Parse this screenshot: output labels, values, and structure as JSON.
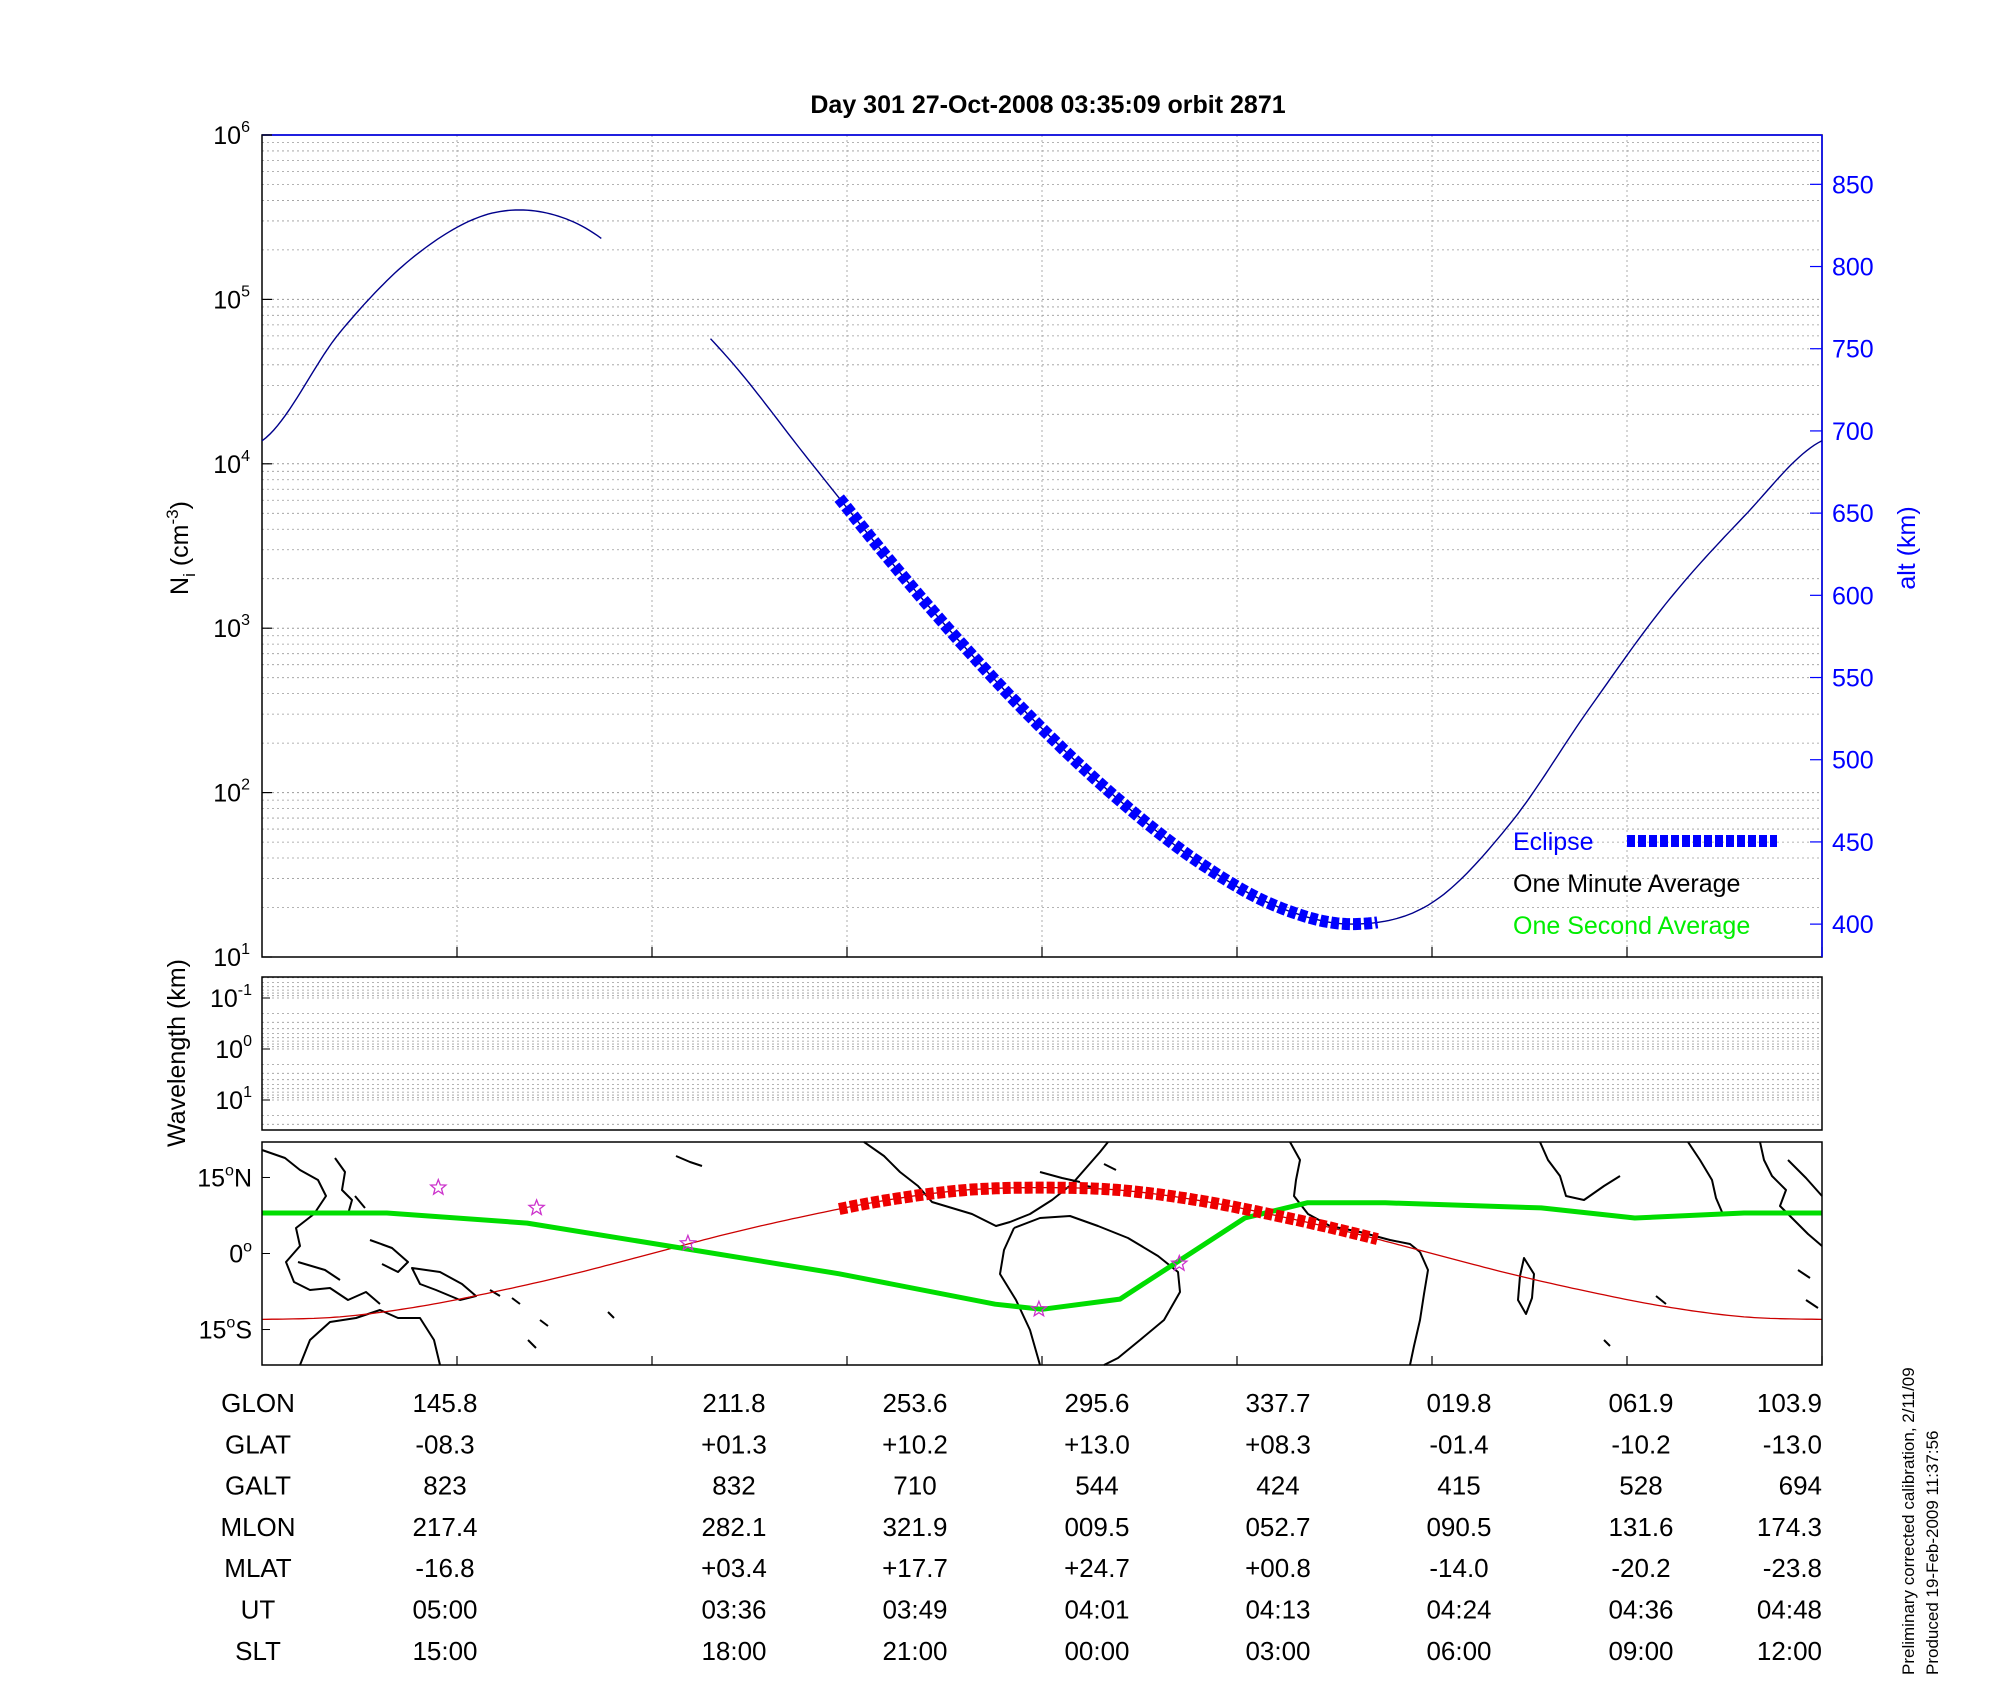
{
  "chart_data": [
    {
      "type": "line",
      "title": "Day 301  27-Oct-2008 03:35:09   orbit 2871",
      "ylabel": "N",
      "ylabel_sub": "i",
      "ylabel_unit_open": " (cm",
      "ylabel_unit_exp": "-3",
      "ylabel_unit_close": ")",
      "y_scale": "log",
      "ylim": [
        10,
        1000000
      ],
      "y_ticks": [
        {
          "base": "10",
          "exp": "1",
          "value": 10
        },
        {
          "base": "10",
          "exp": "2",
          "value": 100
        },
        {
          "base": "10",
          "exp": "3",
          "value": 1000
        },
        {
          "base": "10",
          "exp": "4",
          "value": 10000
        },
        {
          "base": "10",
          "exp": "5",
          "value": 100000
        },
        {
          "base": "10",
          "exp": "6",
          "value": 1000000
        }
      ],
      "y2label": "alt (km)",
      "y2lim": [
        380,
        880
      ],
      "y2_ticks": [
        "400",
        "450",
        "500",
        "550",
        "600",
        "650",
        "700",
        "750",
        "800",
        "850"
      ],
      "x_ticks_ut": [
        "05:00",
        "03:36",
        "03:49",
        "04:01",
        "04:13",
        "04:24",
        "04:36",
        "04:48"
      ],
      "grid": true,
      "legend_position": "bottom-right",
      "legend": [
        {
          "label": "Eclipse",
          "color": "#0000ff",
          "style": "thick-dashed"
        },
        {
          "label": "One Minute Average",
          "color": "#000000",
          "style": "none"
        },
        {
          "label": "One Second Average",
          "color": "#00ee00",
          "style": "none"
        }
      ],
      "series": [
        {
          "name": "alt (km)",
          "axis": "right",
          "color": "#00008b",
          "t": [
            0,
            0.05,
            0.1,
            0.15,
            0.2,
            0.25,
            0.3,
            0.35,
            0.4,
            0.45,
            0.5,
            0.55,
            0.6,
            0.65,
            0.7,
            0.75,
            0.8,
            0.85,
            0.9,
            0.95,
            1.0
          ],
          "values": [
            694,
            760,
            808,
            833,
            827,
            791,
            743,
            683,
            624,
            569,
            519,
            475,
            438,
            411,
            400,
            413,
            461,
            530,
            595,
            648,
            694
          ]
        }
      ],
      "eclipse_t_range": [
        0.37,
        0.715
      ],
      "gaps": [
        [
          0.218,
          0.286
        ]
      ]
    },
    {
      "type": "line",
      "ylabel": "Wavelength (km)",
      "y_scale": "log",
      "y_ticks": [
        {
          "base": "10",
          "exp": "-1"
        },
        {
          "base": "10",
          "exp": "0"
        },
        {
          "base": "10",
          "exp": "1"
        }
      ],
      "grid": true,
      "series": []
    },
    {
      "type": "line",
      "description_map": "world coastline map",
      "y_ticks": [
        {
          "num": "15",
          "deg": "o",
          "hem": "N"
        },
        {
          "num": "0",
          "deg": "o",
          "hem": ""
        },
        {
          "num": "15",
          "deg": "o",
          "hem": "S"
        }
      ],
      "ylim": [
        -22,
        22
      ],
      "series": [
        {
          "name": "magnetic equator",
          "color": "#00dd00",
          "t": [
            0,
            0.08,
            0.17,
            0.27,
            0.37,
            0.47,
            0.5,
            0.55,
            0.59,
            0.63,
            0.67,
            0.72,
            0.82,
            0.88,
            0.95,
            1.0
          ],
          "lat": [
            8,
            8,
            6,
            1,
            -4,
            -10,
            -11,
            -9,
            -1,
            7,
            10,
            10,
            9,
            7,
            8,
            8
          ]
        },
        {
          "name": "orbit track",
          "color": "#cc0000",
          "t": [
            0,
            0.05,
            0.1,
            0.15,
            0.2,
            0.25,
            0.3,
            0.35,
            0.4,
            0.45,
            0.5,
            0.55,
            0.6,
            0.65,
            0.7,
            0.75,
            0.8,
            0.85,
            0.9,
            0.95,
            1.0
          ],
          "lat": [
            -13,
            -12.5,
            -10.5,
            -7.5,
            -4,
            0,
            4,
            7.5,
            10.5,
            12.5,
            13,
            12.5,
            10.5,
            7.5,
            4,
            0,
            -4,
            -7.5,
            -10.5,
            -12.5,
            -13
          ]
        }
      ],
      "eclipse_t_range": [
        0.37,
        0.715
      ],
      "stars_t": [
        {
          "t": 0.113,
          "lat": 13
        },
        {
          "t": 0.176,
          "lat": 9
        },
        {
          "t": 0.273,
          "lat": 2
        },
        {
          "t": 0.498,
          "lat": -11
        },
        {
          "t": 0.588,
          "lat": -2
        }
      ]
    }
  ],
  "table": {
    "row_labels": [
      "GLON",
      "GLAT",
      "GALT",
      "MLON",
      "MLAT",
      "UT",
      "SLT"
    ],
    "columns": [
      [
        "145.8",
        "-08.3",
        "823",
        "217.4",
        "-16.8",
        "05:00",
        "15:00"
      ],
      [
        "211.8",
        "+01.3",
        "832",
        "282.1",
        "+03.4",
        "03:36",
        "18:00"
      ],
      [
        "253.6",
        "+10.2",
        "710",
        "321.9",
        "+17.7",
        "03:49",
        "21:00"
      ],
      [
        "295.6",
        "+13.0",
        "544",
        "009.5",
        "+24.7",
        "04:01",
        "00:00"
      ],
      [
        "337.7",
        "+08.3",
        "424",
        "052.7",
        "+00.8",
        "04:13",
        "03:00"
      ],
      [
        "019.8",
        "-01.4",
        "415",
        "090.5",
        "-14.0",
        "04:24",
        "06:00"
      ],
      [
        "061.9",
        "-10.2",
        "528",
        "131.6",
        "-20.2",
        "04:36",
        "09:00"
      ],
      [
        "103.9",
        "-13.0",
        "694",
        "174.3",
        "-23.8",
        "04:48",
        "12:00"
      ]
    ]
  },
  "notes": {
    "line1": "Preliminary corrected calibration, 2/11/09",
    "line2": "Produced 19-Feb-2009 11:37:56"
  }
}
